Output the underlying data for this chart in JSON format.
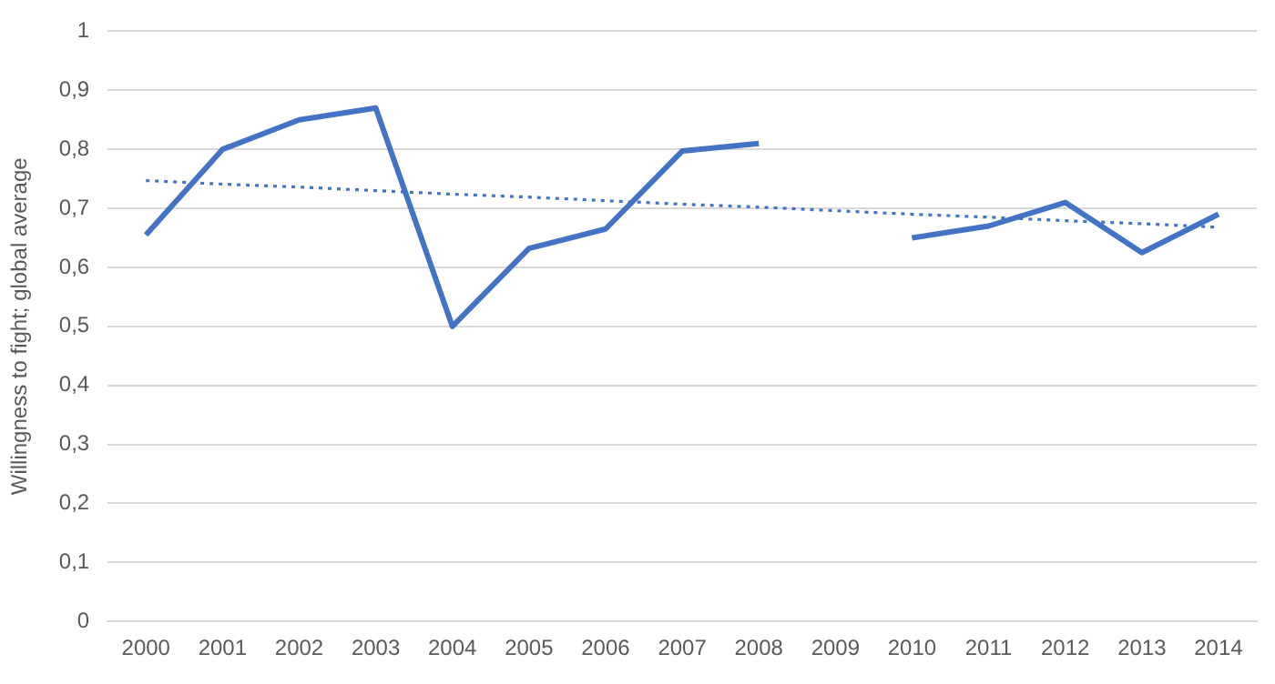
{
  "chart_data": {
    "type": "line",
    "ylabel": "Willingness to fight; global average",
    "categories": [
      "2000",
      "2001",
      "2002",
      "2003",
      "2004",
      "2005",
      "2006",
      "2007",
      "2008",
      "2009",
      "2010",
      "2011",
      "2012",
      "2013",
      "2014"
    ],
    "series": [
      {
        "color": "#4472c4",
        "values": [
          0.655,
          0.8,
          0.85,
          0.87,
          0.5,
          0.632,
          0.665,
          0.797,
          0.81,
          null,
          0.65,
          0.67,
          0.71,
          0.625,
          0.69
        ],
        "line_style": "solid"
      },
      {
        "color": "#4472c4",
        "values": [
          0.747,
          0.741,
          0.736,
          0.73,
          0.724,
          0.719,
          0.713,
          0.707,
          0.702,
          0.696,
          0.69,
          0.685,
          0.679,
          0.674,
          0.668
        ],
        "line_style": "dotted"
      }
    ],
    "ylim": [
      0,
      1
    ],
    "yticks": [
      0,
      {
        "value": 0.1,
        "label": "0,1"
      },
      {
        "value": 0.2,
        "label": "0,2"
      },
      {
        "value": 0.3,
        "label": "0,3"
      },
      {
        "value": 0.4,
        "label": "0,4"
      },
      {
        "value": 0.5,
        "label": "0,5"
      },
      {
        "value": 0.6,
        "label": "0,6"
      },
      {
        "value": 0.7,
        "label": "0,7"
      },
      {
        "value": 0.8,
        "label": "0,8"
      },
      {
        "value": 0.9,
        "label": "0,9"
      },
      1
    ],
    "grid": "y",
    "legend": false,
    "marker": "none"
  }
}
